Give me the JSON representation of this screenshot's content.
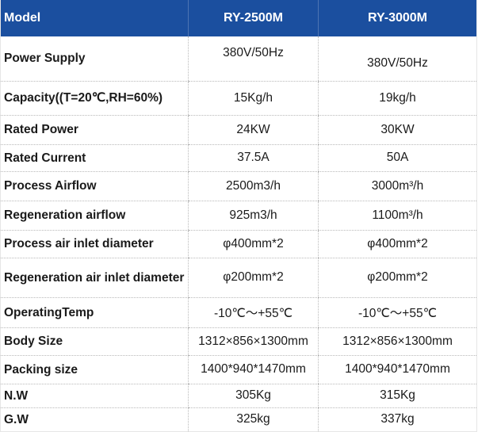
{
  "header": {
    "label": "Model",
    "models": [
      "RY-2500M",
      "RY-3000M"
    ]
  },
  "rows": [
    {
      "label": "Power Supply",
      "values": [
        "380V/50Hz",
        "380V/50Hz"
      ]
    },
    {
      "label": "Capacity((T=20℃,RH=60%)",
      "values": [
        "15Kg/h",
        "19kg/h"
      ]
    },
    {
      "label": "Rated Power",
      "values": [
        "24KW",
        "30KW"
      ]
    },
    {
      "label": "Rated Current",
      "values": [
        "37.5A",
        "50A"
      ]
    },
    {
      "label": "Process Airflow",
      "values": [
        "2500m3/h",
        "3000m³/h"
      ]
    },
    {
      "label": "Regeneration airflow",
      "values": [
        "925m3/h",
        "1100m³/h"
      ]
    },
    {
      "label": "Process air inlet diameter",
      "values": [
        "φ400mm*2",
        "φ400mm*2"
      ]
    },
    {
      "label": "Regeneration air inlet diameter",
      "values": [
        "φ200mm*2",
        "φ200mm*2"
      ]
    },
    {
      "label": "OperatingTemp",
      "values": [
        "-10℃～+55℃",
        "-10℃～+55℃"
      ]
    },
    {
      "label": "Body Size",
      "values": [
        "1312×856×1300mm",
        "1312×856×1300mm"
      ]
    },
    {
      "label": "Packing size",
      "values": [
        "1400*940*1470mm",
        "1400*940*1470mm"
      ]
    },
    {
      "label": "N.W",
      "values": [
        "305Kg",
        "315Kg"
      ]
    },
    {
      "label": "G.W",
      "values": [
        "325kg",
        "337kg"
      ]
    }
  ],
  "colors": {
    "header_bg": "#1b4f9f",
    "header_text": "#ffffff",
    "row_divider": "#b9b9b9",
    "text": "#1a1a1a"
  }
}
